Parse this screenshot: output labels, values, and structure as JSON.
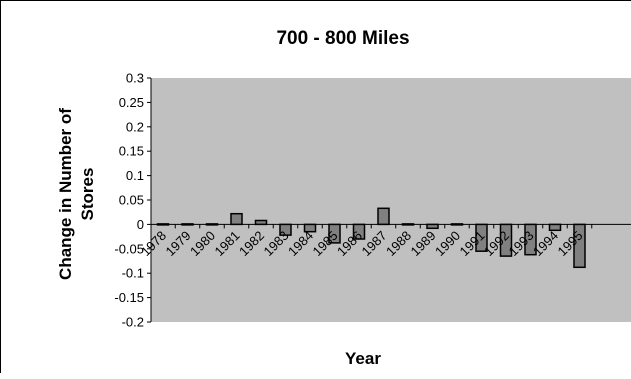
{
  "chart_data": {
    "type": "bar",
    "title": "700 - 800 Miles",
    "xlabel": "Year",
    "ylabel_lines": [
      "Change in Number of",
      "Stores"
    ],
    "categories": [
      "1978",
      "1979",
      "1980",
      "1981",
      "1982",
      "1983",
      "1984",
      "1985",
      "1986",
      "1987",
      "1988",
      "1989",
      "1990",
      "1991",
      "1992",
      "1993",
      "1994",
      "1995"
    ],
    "values": [
      -0.002,
      -0.002,
      0.0,
      0.022,
      0.008,
      -0.022,
      -0.015,
      -0.038,
      -0.03,
      0.033,
      0.0,
      -0.008,
      0.002,
      -0.055,
      -0.065,
      -0.062,
      -0.012,
      -0.088
    ],
    "ylim": [
      -0.2,
      0.3
    ],
    "yticks": [
      0.3,
      0.25,
      0.2,
      0.15,
      0.1,
      0.05,
      0,
      -0.05,
      -0.1,
      -0.15,
      -0.2
    ],
    "ytick_labels": [
      "0.3",
      "0.25",
      "0.2",
      "0.15",
      "0.1",
      "0.05",
      "0",
      "-0.05",
      "-0.1",
      "-0.15",
      "-0.2"
    ],
    "grid": false,
    "legend": "none"
  },
  "colors": {
    "plot_background": "#c0c0c0",
    "bar_fill": "#808080",
    "bar_stroke": "#000000",
    "axis": "#000000"
  }
}
